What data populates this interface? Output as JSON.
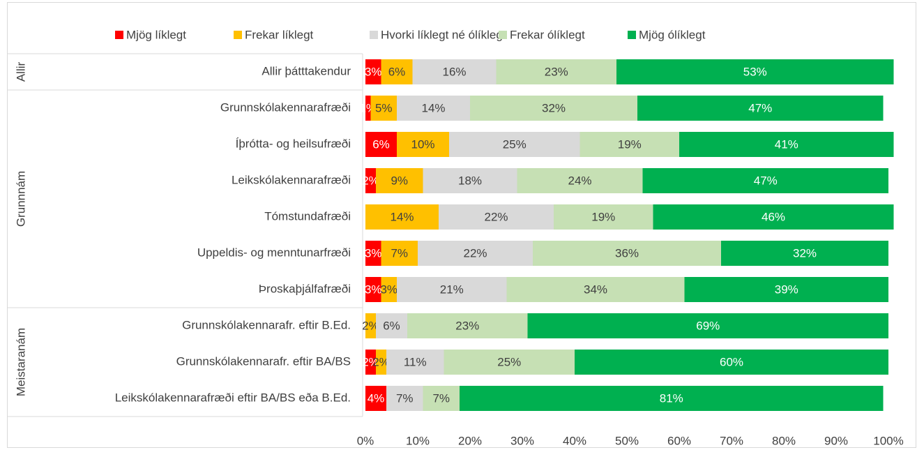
{
  "chart_data": {
    "type": "stacked-bar-horizontal",
    "groups": [
      {
        "name": "Allir",
        "categories": [
          "Allir þátttakendur"
        ]
      },
      {
        "name": "Grunnnám",
        "categories": [
          "Grunnskólakennarafræði",
          "Íþrótta- og heilsufræði",
          "Leikskólakennarafræði",
          "Tómstundafræði",
          "Uppeldis- og menntunarfræði",
          "Þroskaþjálfafræði"
        ]
      },
      {
        "name": "Meistaranám",
        "categories": [
          "Grunnskólakennarafr. eftir B.Ed.",
          "Grunnskólakennarafr. eftir BA/BS",
          "Leikskólakennarafræði eftir BA/BS eða B.Ed."
        ]
      }
    ],
    "series": [
      {
        "name": "Mjög líklegt",
        "color": "#ff0000",
        "values": [
          3,
          1,
          6,
          2,
          0,
          3,
          3,
          0,
          2,
          4
        ],
        "value_labels": [
          "3%",
          "1%",
          "6%",
          "2%",
          null,
          "3%",
          "3%",
          null,
          "2%",
          "4%"
        ]
      },
      {
        "name": "Frekar líklegt",
        "color": "#ffc000",
        "values": [
          6,
          5,
          10,
          9,
          14,
          7,
          3,
          2,
          2,
          0
        ],
        "value_labels": [
          "6%",
          "5%",
          "10%",
          "9%",
          "14%",
          "7%",
          "3%",
          "2%",
          "2%",
          null
        ]
      },
      {
        "name": "Hvorki líklegt né ólíklegt",
        "color": "#d9d9d9",
        "values": [
          16,
          14,
          25,
          18,
          22,
          22,
          21,
          6,
          11,
          7
        ],
        "value_labels": [
          "16%",
          "14%",
          "25%",
          "18%",
          "22%",
          "22%",
          "21%",
          "6%",
          "11%",
          "7%"
        ]
      },
      {
        "name": "Frekar ólíklegt",
        "color": "#c6e0b4",
        "values": [
          23,
          32,
          19,
          24,
          19,
          36,
          34,
          23,
          25,
          7
        ],
        "value_labels": [
          "23%",
          "32%",
          "19%",
          "24%",
          "19%",
          "36%",
          "34%",
          "23%",
          "25%",
          "7%"
        ]
      },
      {
        "name": "Mjög ólíklegt",
        "color": "#00b050",
        "values": [
          53,
          47,
          41,
          47,
          46,
          32,
          39,
          69,
          60,
          81
        ],
        "value_labels": [
          "53%",
          "47%",
          "41%",
          "47%",
          "46%",
          "32%",
          "39%",
          "69%",
          "60%",
          "81%"
        ]
      }
    ],
    "xlim": [
      0,
      100
    ],
    "xticks": [
      {
        "value": 0,
        "label": "0%"
      },
      {
        "value": 10,
        "label": "10%"
      },
      {
        "value": 20,
        "label": "20%"
      },
      {
        "value": 30,
        "label": "30%"
      },
      {
        "value": 40,
        "label": "40%"
      },
      {
        "value": 50,
        "label": "50%"
      },
      {
        "value": 60,
        "label": "60%"
      },
      {
        "value": 70,
        "label": "70%"
      },
      {
        "value": 80,
        "label": "80%"
      },
      {
        "value": 90,
        "label": "90%"
      },
      {
        "value": 100,
        "label": "100%"
      }
    ],
    "legend": "top"
  }
}
